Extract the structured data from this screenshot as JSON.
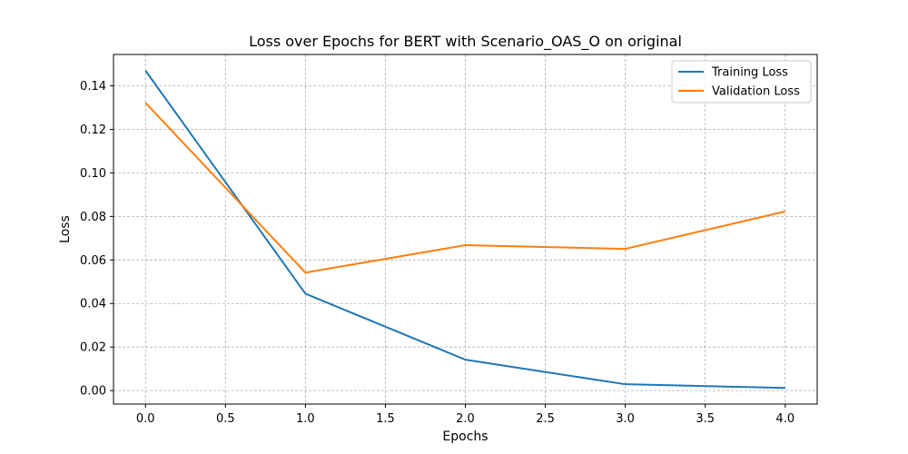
{
  "chart_data": {
    "type": "line",
    "title": "Loss over Epochs for BERT with Scenario_OAS_O on original",
    "xlabel": "Epochs",
    "ylabel": "Loss",
    "x": [
      0,
      1,
      2,
      3,
      4
    ],
    "series": [
      {
        "name": "Training Loss",
        "color": "#1f77b4",
        "values": [
          0.147,
          0.0445,
          0.0142,
          0.0029,
          0.0012
        ]
      },
      {
        "name": "Validation Loss",
        "color": "#ff7f0e",
        "values": [
          0.1322,
          0.0542,
          0.0668,
          0.0651,
          0.0823
        ]
      }
    ],
    "xlim": [
      -0.2,
      4.2
    ],
    "ylim": [
      -0.0062,
      0.1544
    ],
    "xticks": [
      0.0,
      0.5,
      1.0,
      1.5,
      2.0,
      2.5,
      3.0,
      3.5,
      4.0
    ],
    "xtick_labels": [
      "0.0",
      "0.5",
      "1.0",
      "1.5",
      "2.0",
      "2.5",
      "3.0",
      "3.5",
      "4.0"
    ],
    "yticks": [
      0.0,
      0.02,
      0.04,
      0.06,
      0.08,
      0.1,
      0.12,
      0.14
    ],
    "ytick_labels": [
      "0.00",
      "0.02",
      "0.04",
      "0.06",
      "0.08",
      "0.10",
      "0.12",
      "0.14"
    ],
    "grid": true,
    "legend_position": "top-right"
  }
}
